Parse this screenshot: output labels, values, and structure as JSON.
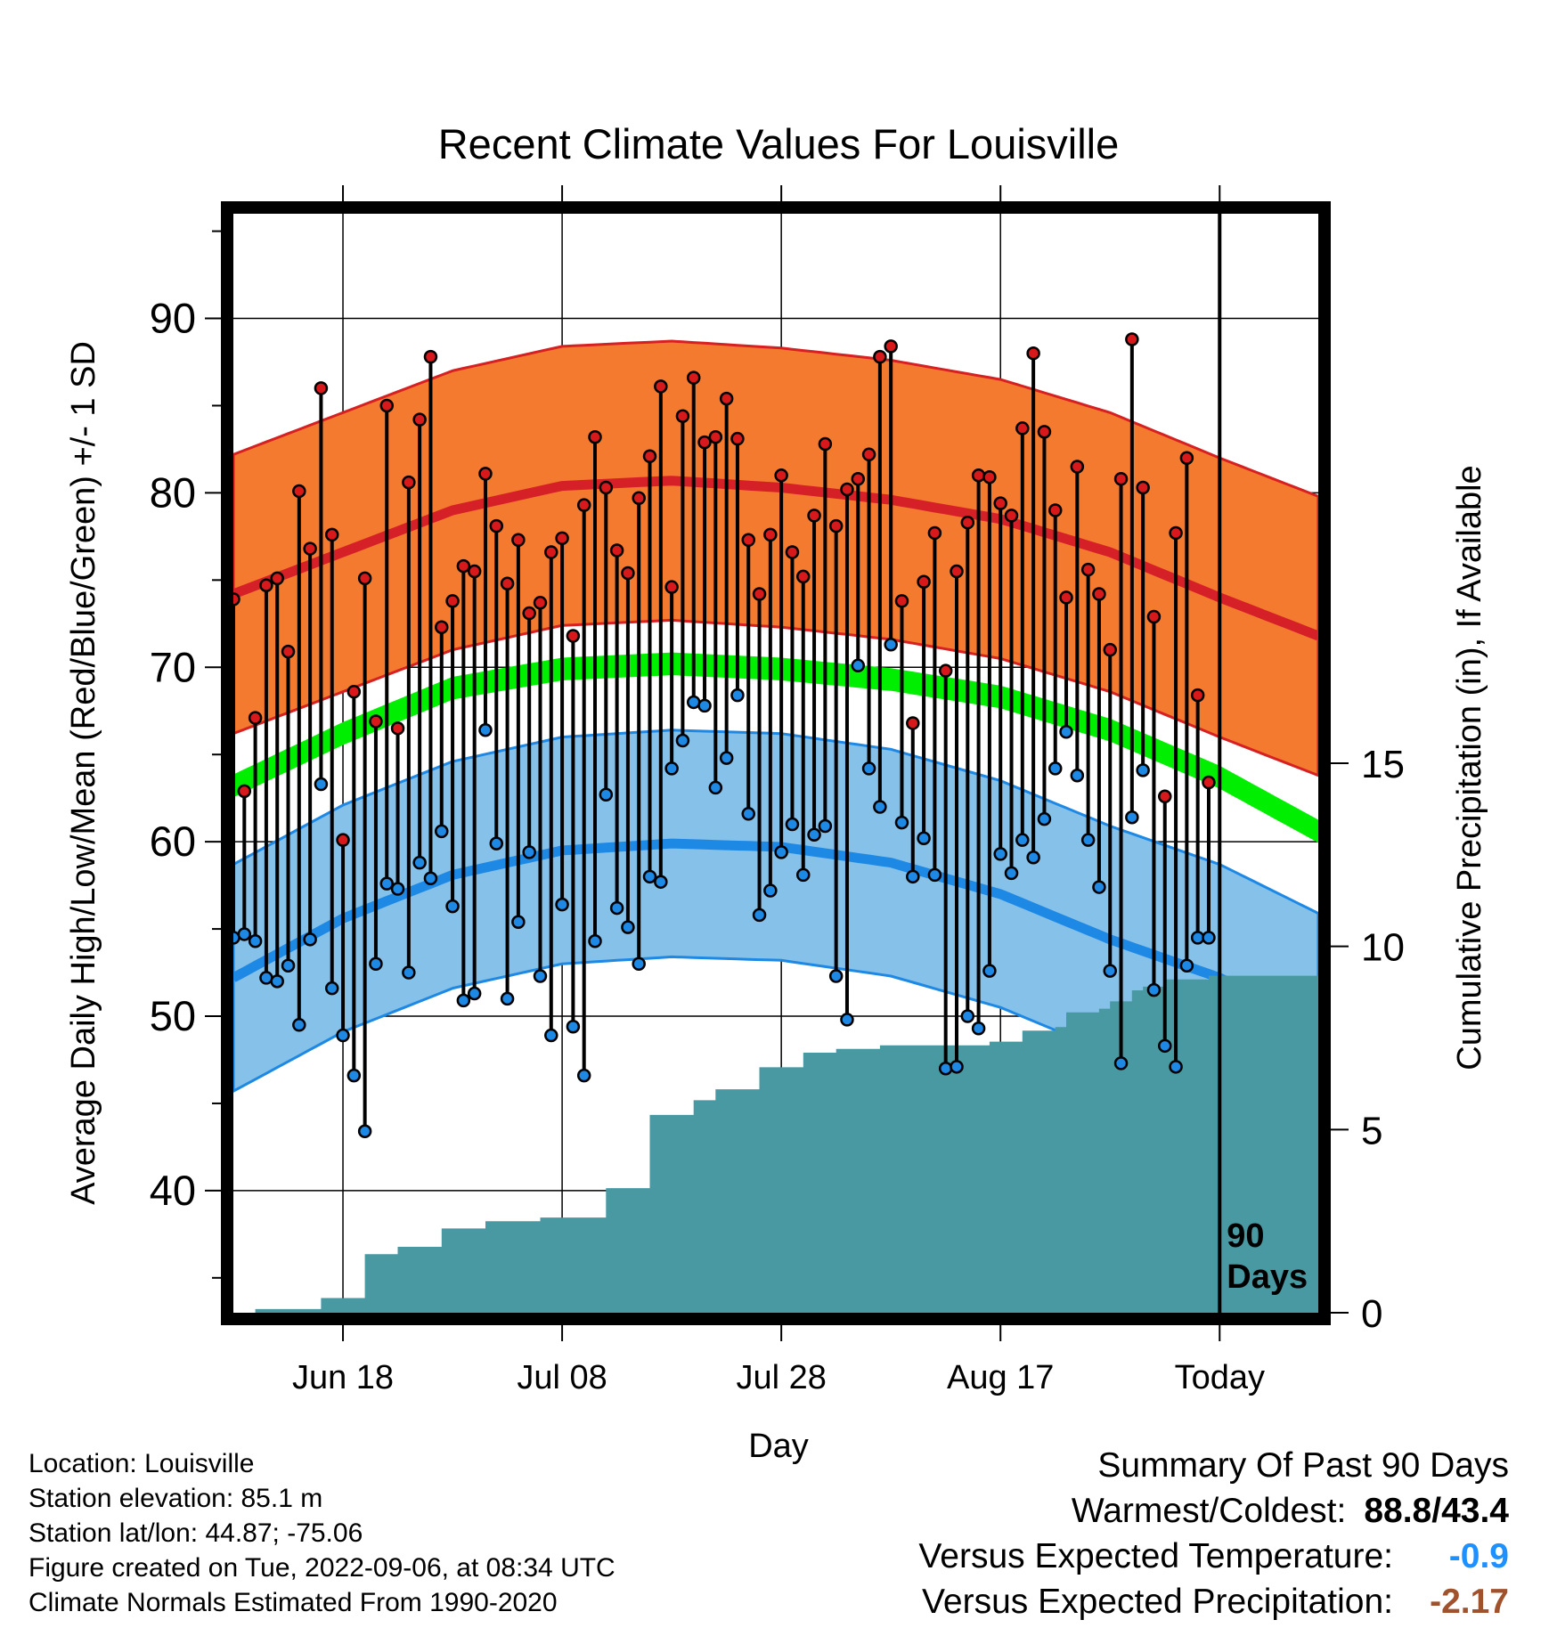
{
  "chart_data": {
    "type": "line",
    "title": "Recent Climate Values For Louisville",
    "xlabel": "Day",
    "ylabel": "Average Daily High/Low/Mean (Red/Blue/Green) +/- 1 SD",
    "y2label": "Cumulative Precipitation (in), If Available",
    "ylim": [
      33,
      96
    ],
    "y2lim": [
      0,
      30
    ],
    "xlim": [
      -90,
      9
    ],
    "x_unit": "days relative to Today",
    "x_ticks": [
      {
        "value": -80,
        "label": "Jun 18"
      },
      {
        "value": -60,
        "label": "Jul 08"
      },
      {
        "value": -40,
        "label": "Jul 28"
      },
      {
        "value": -20,
        "label": "Aug 17"
      },
      {
        "value": 0,
        "label": "Today"
      }
    ],
    "y_ticks": [
      40,
      50,
      60,
      70,
      80,
      90
    ],
    "y2_ticks": [
      0,
      5,
      10,
      15
    ],
    "marker_label": "90\nDays",
    "colors": {
      "high_band": "#f47a30",
      "high_band_edge": "#d62021",
      "normal_high": "#d62028",
      "normal_mean": "#00ee00",
      "low_band": "#85c1e9",
      "low_band_edge": "#1e88e5",
      "normal_low": "#1e88e5",
      "precip": "#4899a2",
      "high_dot": "#d7191c",
      "low_dot": "#1e88e5"
    },
    "normals": {
      "x": [
        -90,
        -80,
        -70,
        -60,
        -50,
        -40,
        -30,
        -20,
        -10,
        0,
        9
      ],
      "high": [
        74.2,
        76.6,
        79.0,
        80.4,
        80.7,
        80.3,
        79.6,
        78.5,
        76.6,
        74.0,
        71.8
      ],
      "high_sd": 8.0,
      "mean": [
        63.2,
        66.2,
        68.8,
        69.9,
        70.2,
        69.9,
        69.3,
        68.3,
        66.4,
        63.7,
        60.6
      ],
      "mean_sd": 0.6,
      "low": [
        52.2,
        55.6,
        58.1,
        59.5,
        59.9,
        59.7,
        58.8,
        57.0,
        54.4,
        52.2,
        49.4
      ],
      "low_sd": 6.5
    },
    "series": [
      {
        "name": "Daily High",
        "values": [
          73.9,
          62.9,
          67.1,
          74.7,
          75.1,
          70.9,
          80.1,
          76.8,
          86.0,
          77.6,
          60.1,
          68.6,
          75.1,
          66.9,
          85.0,
          66.5,
          80.6,
          84.2,
          87.8,
          72.3,
          73.8,
          75.8,
          75.5,
          81.1,
          78.1,
          74.8,
          77.3,
          73.1,
          73.7,
          76.6,
          77.4,
          71.8,
          79.3,
          83.2,
          80.3,
          76.7,
          75.4,
          79.7,
          82.1,
          86.1,
          74.6,
          84.4,
          86.6,
          82.9,
          83.2,
          85.4,
          83.1,
          77.3,
          74.2,
          77.6,
          81.0,
          76.6,
          75.2,
          78.7,
          82.8,
          78.1,
          80.2,
          80.8,
          82.2,
          87.8,
          88.4,
          73.8,
          66.8,
          74.9,
          77.7,
          69.8,
          75.5,
          78.3,
          81.0,
          80.9,
          79.4,
          78.7,
          83.7,
          88.0,
          83.5,
          79.0,
          74.0,
          81.5,
          75.6,
          74.2,
          71.0,
          80.8,
          88.8,
          80.3,
          72.9,
          62.6,
          77.7,
          82.0,
          68.4,
          63.4
        ]
      },
      {
        "name": "Daily Low",
        "values": [
          54.5,
          54.7,
          54.3,
          52.2,
          52.0,
          52.9,
          49.5,
          54.4,
          63.3,
          51.6,
          48.9,
          46.6,
          43.4,
          53.0,
          57.6,
          57.3,
          52.5,
          58.8,
          57.9,
          60.6,
          56.3,
          50.9,
          51.3,
          66.4,
          59.9,
          51.0,
          55.4,
          59.4,
          52.3,
          48.9,
          56.4,
          49.4,
          46.6,
          54.3,
          62.7,
          56.2,
          55.1,
          53.0,
          58.0,
          57.7,
          64.2,
          65.8,
          68.0,
          67.8,
          63.1,
          64.8,
          68.4,
          61.6,
          55.8,
          57.2,
          59.4,
          61.0,
          58.1,
          60.4,
          60.9,
          52.3,
          49.8,
          70.1,
          64.2,
          62.0,
          71.3,
          61.1,
          58.0,
          60.2,
          58.1,
          47.0,
          47.1,
          50.0,
          49.3,
          52.6,
          59.3,
          58.2,
          60.1,
          59.1,
          61.3,
          64.2,
          66.3,
          63.8,
          60.1,
          57.4,
          52.6,
          47.3,
          61.4,
          64.1,
          51.5,
          48.3,
          47.1,
          52.9,
          54.5,
          54.5
        ]
      }
    ],
    "precip_cumulative": {
      "x": [
        -90,
        -88,
        -82,
        -78,
        -75,
        -71,
        -67,
        -65,
        -62,
        -56,
        -52,
        -48,
        -46,
        -42,
        -38,
        -35,
        -31,
        -21,
        -18,
        -15,
        -14,
        -11,
        -10,
        -8,
        -7,
        -5,
        -1,
        0,
        9
      ],
      "values": [
        0,
        0.1,
        0.4,
        1.6,
        1.8,
        2.3,
        2.5,
        2.5,
        2.6,
        3.4,
        5.4,
        5.8,
        6.1,
        6.7,
        7.1,
        7.2,
        7.3,
        7.4,
        7.7,
        7.8,
        8.2,
        8.3,
        8.5,
        8.8,
        8.9,
        9.1,
        9.2,
        9.2,
        9.2
      ]
    }
  },
  "footer": {
    "location": "Location: Louisville",
    "elevation": "Station elevation: 85.1 m",
    "latlon": "Station lat/lon: 44.87; -75.06",
    "created": "Figure created on Tue, 2022-09-06, at 08:34 UTC",
    "normals": "Climate Normals Estimated From 1990-2020"
  },
  "summary": {
    "heading": "Summary Of Past 90 Days",
    "warmest_label": "Warmest/Coldest:",
    "warmest_value": "88.8/43.4",
    "temp_label": "Versus Expected Temperature:",
    "temp_value": "-0.9",
    "precip_label": "Versus Expected Precipitation:",
    "precip_value": "-2.17"
  }
}
